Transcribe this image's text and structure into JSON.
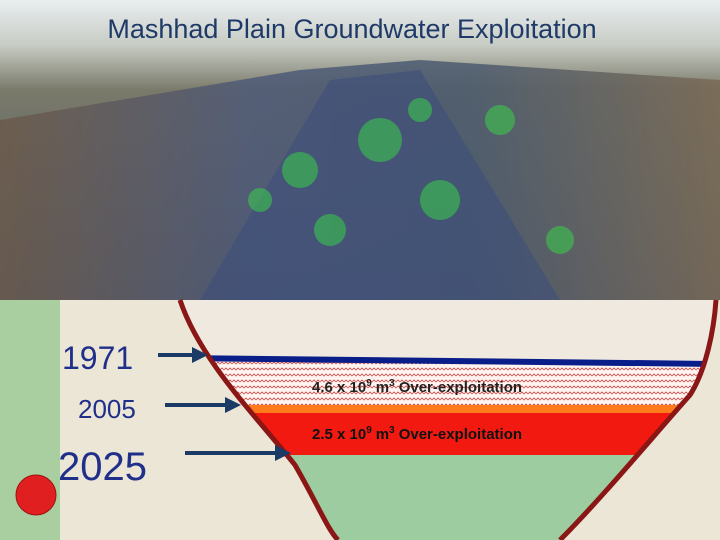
{
  "header": {
    "title": "Mashhad Plain Groundwater Exploitation"
  },
  "years": [
    "1971",
    "2005",
    "2025"
  ],
  "layers": [
    {
      "coefficient": "4.6 x 10",
      "exponent": "9",
      "unit": "m",
      "unit_exponent": "3",
      "text": "Over-exploitation"
    },
    {
      "coefficient": "2.5 x 10",
      "exponent": "9",
      "unit": "m",
      "unit_exponent": "3",
      "text": "Over-exploitation"
    }
  ]
}
